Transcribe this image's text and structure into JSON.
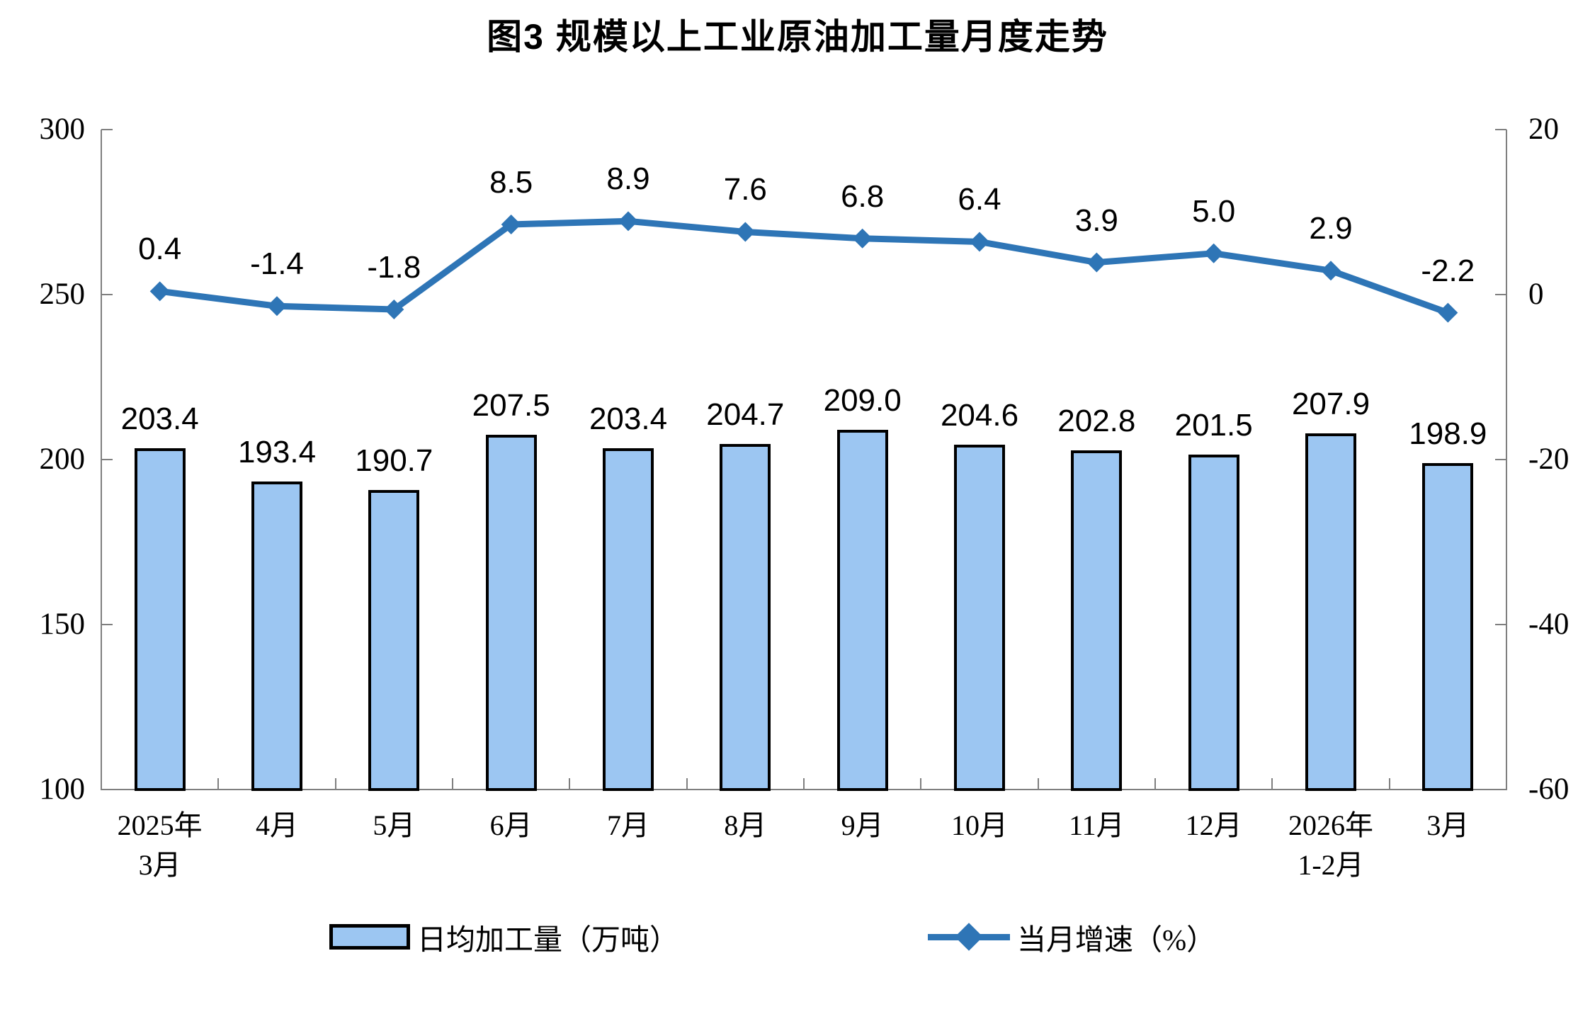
{
  "title": "图3  规模以上工业原油加工量月度走势",
  "legend": {
    "bar_label": "日均加工量（万吨）",
    "line_label": "当月增速（%）"
  },
  "chart_data": {
    "type": "bar",
    "subtype": "bar-line-combo",
    "title": "图3  规模以上工业原油加工量月度走势",
    "categories": [
      [
        "2025年",
        "3月"
      ],
      [
        "4月"
      ],
      [
        "5月"
      ],
      [
        "6月"
      ],
      [
        "7月"
      ],
      [
        "8月"
      ],
      [
        "9月"
      ],
      [
        "10月"
      ],
      [
        "11月"
      ],
      [
        "12月"
      ],
      [
        "2026年",
        "1-2月"
      ],
      [
        "3月"
      ]
    ],
    "series": [
      {
        "name": "日均加工量（万吨）",
        "type": "bar",
        "axis": "left",
        "color": "#9CC6F2",
        "border_color": "#000000",
        "values": [
          203.4,
          193.4,
          190.7,
          207.5,
          203.4,
          204.7,
          209.0,
          204.6,
          202.8,
          201.5,
          207.9,
          198.9
        ]
      },
      {
        "name": "当月增速（%）",
        "type": "line",
        "axis": "right",
        "color": "#2E75B6",
        "marker": "diamond",
        "values": [
          0.4,
          -1.4,
          -1.8,
          8.5,
          8.9,
          7.6,
          6.8,
          6.4,
          3.9,
          5.0,
          2.9,
          -2.2
        ]
      }
    ],
    "left_axis": {
      "min": 100,
      "max": 300,
      "ticks": [
        300,
        250,
        200,
        150,
        100
      ]
    },
    "right_axis": {
      "min": -60,
      "max": 20,
      "ticks": [
        20,
        0,
        -20,
        -40,
        -60
      ]
    },
    "grid": false,
    "legend_position": "bottom",
    "value_labels": true,
    "value_label_decimals": 1
  }
}
